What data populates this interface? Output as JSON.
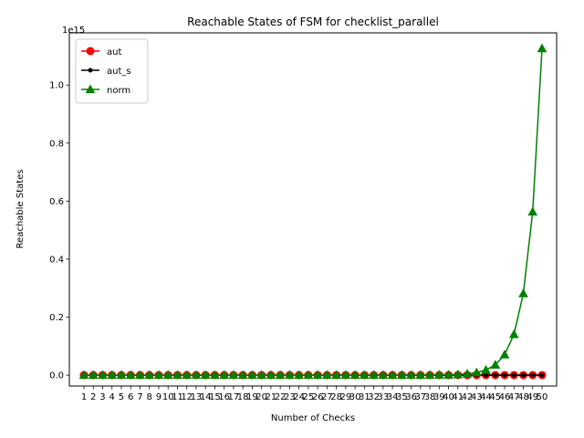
{
  "chart_data": {
    "type": "line",
    "title": "Reachable States of FSM for checklist_parallel",
    "xlabel": "Number of Checks",
    "ylabel": "Reachable States",
    "y_offset_text": "1e15",
    "y_scale": 1000000000000000.0,
    "ylim": [
      -37500000000000.0,
      1180000000000000.0
    ],
    "yticks": [
      0,
      200000000000000.0,
      400000000000000.0,
      600000000000000.0,
      800000000000000.0,
      1000000000000000.0
    ],
    "ytick_labels": [
      "0.0",
      "0.2",
      "0.4",
      "0.6",
      "0.8",
      "1.0"
    ],
    "grid": false,
    "legend_position": "upper-left",
    "x": [
      1,
      2,
      3,
      4,
      5,
      6,
      7,
      8,
      9,
      10,
      11,
      12,
      13,
      14,
      15,
      16,
      17,
      18,
      19,
      20,
      21,
      22,
      23,
      24,
      25,
      26,
      27,
      28,
      29,
      30,
      31,
      32,
      33,
      34,
      35,
      36,
      37,
      38,
      39,
      40,
      41,
      42,
      43,
      44,
      45,
      46,
      47,
      48,
      49,
      50
    ],
    "series": [
      {
        "name": "aut",
        "color": "#ff0000",
        "marker": "circle",
        "values": [
          0,
          0,
          0,
          0,
          0,
          0,
          0,
          0,
          0,
          0,
          0,
          0,
          0,
          0,
          0,
          0,
          0,
          0,
          0,
          0,
          0,
          0,
          0,
          0,
          0,
          0,
          0,
          0,
          0,
          0,
          0,
          0,
          0,
          0,
          0,
          0,
          0,
          0,
          0,
          0,
          0,
          0,
          0,
          0,
          0,
          0,
          0,
          0,
          0,
          0
        ]
      },
      {
        "name": "aut_s",
        "color": "#000000",
        "marker": "dot",
        "values": [
          0,
          0,
          0,
          0,
          0,
          0,
          0,
          0,
          0,
          0,
          0,
          0,
          0,
          0,
          0,
          0,
          0,
          0,
          0,
          0,
          0,
          0,
          0,
          0,
          0,
          0,
          0,
          0,
          0,
          0,
          0,
          0,
          0,
          0,
          0,
          0,
          0,
          0,
          0,
          0,
          0,
          0,
          0,
          0,
          0,
          0,
          0,
          0,
          0,
          0
        ]
      },
      {
        "name": "norm",
        "color": "#008000",
        "marker": "triangle",
        "values": [
          2,
          4,
          8,
          16,
          32,
          64,
          128,
          256,
          512,
          1024,
          2048,
          4096,
          8192,
          16384,
          32768,
          65536,
          131072,
          262144,
          524288,
          1048576,
          2097152,
          4194304,
          8388608,
          16777216,
          33554432,
          67108864,
          134217728,
          268435456,
          536870912,
          1073741824,
          2147483648,
          4294967296,
          8589934592,
          17179869184,
          34359738368,
          68719476736,
          137438953472,
          274877906944,
          549755813888,
          1099511627776,
          2199023255552,
          4398046511104,
          8796093022208,
          17592186044416,
          35184372088832,
          70368744177664,
          140737488355328,
          281474976710656,
          562949953421312,
          1125899906842624
        ]
      }
    ]
  }
}
